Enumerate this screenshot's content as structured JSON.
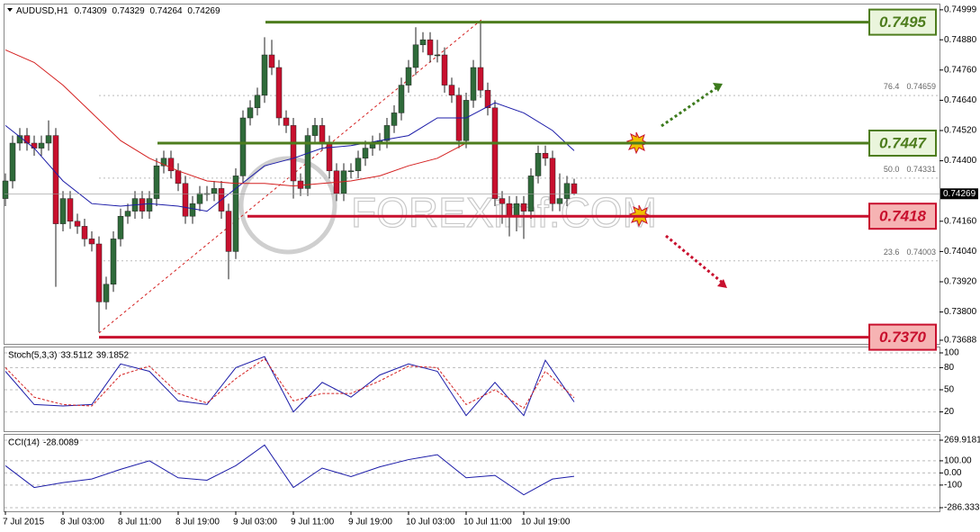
{
  "chart_data": [
    {
      "type": "candlestick",
      "symbol": "AUDUSD,H1",
      "header": [
        0.74309,
        0.74329,
        0.74264,
        0.74269
      ],
      "up_color": "#2f6b3a",
      "down_color": "#c8102e",
      "categories": [
        "7 Jul 2015",
        null,
        null,
        null,
        null,
        null,
        null,
        null,
        "8 Jul 03:00",
        null,
        null,
        null,
        null,
        null,
        null,
        null,
        "8 Jul 11:00",
        null,
        null,
        null,
        null,
        null,
        null,
        null,
        "8 Jul 19:00",
        null,
        null,
        null,
        null,
        null,
        null,
        null,
        "9 Jul 03:00",
        null,
        null,
        null,
        null,
        null,
        null,
        null,
        "9 Jul 11:00",
        null,
        null,
        null,
        null,
        null,
        null,
        null,
        "9 Jul 19:00",
        null,
        null,
        null,
        null,
        null,
        null,
        null,
        "10 Jul 03:00",
        null,
        null,
        null,
        null,
        null,
        null,
        null,
        "10 Jul 11:00",
        null,
        null,
        null,
        null,
        null,
        null,
        null,
        "10 Jul 19:00",
        null,
        null,
        null,
        null,
        null,
        null,
        null
      ],
      "open": [
        0.7425,
        0.7432,
        0.7447,
        0.745,
        0.7447,
        0.7445,
        0.7447,
        0.745,
        0.7415,
        0.7425,
        0.7416,
        0.7414,
        0.7409,
        0.7407,
        0.7384,
        0.7391,
        0.7409,
        0.7418,
        0.742,
        0.7425,
        0.742,
        0.7425,
        0.7438,
        0.7441,
        0.7436,
        0.7431,
        0.7418,
        0.7423,
        0.7427,
        0.7427,
        0.7429,
        0.742,
        0.7404,
        0.7434,
        0.7457,
        0.7461,
        0.7466,
        0.7482,
        0.7477,
        0.7457,
        0.7454,
        0.7432,
        0.7429,
        0.745,
        0.7454,
        0.7447,
        0.7436,
        0.7427,
        0.7436,
        0.7436,
        0.7441,
        0.7445,
        0.7447,
        0.7448,
        0.7454,
        0.7459,
        0.747,
        0.7477,
        0.7486,
        0.7488,
        0.7482,
        0.7482,
        0.747,
        0.7466,
        0.7448,
        0.7464,
        0.7477,
        0.7468,
        0.7461,
        0.7425,
        0.7423,
        0.7418,
        0.7423,
        0.742,
        0.7434,
        0.7443,
        0.7441,
        0.7423,
        0.7425,
        0.74309
      ],
      "high": [
        0.7435,
        0.745,
        0.7453,
        0.7453,
        0.745,
        0.745,
        0.7456,
        0.7453,
        0.7428,
        0.7428,
        0.7419,
        0.7417,
        0.7412,
        0.741,
        0.7394,
        0.7412,
        0.7421,
        0.7423,
        0.7428,
        0.7428,
        0.7428,
        0.7441,
        0.7444,
        0.7444,
        0.7439,
        0.7434,
        0.7426,
        0.743,
        0.743,
        0.7432,
        0.7432,
        0.7423,
        0.7437,
        0.746,
        0.7464,
        0.7469,
        0.7489,
        0.7488,
        0.748,
        0.746,
        0.7457,
        0.7435,
        0.7453,
        0.7457,
        0.7457,
        0.745,
        0.7439,
        0.7439,
        0.7439,
        0.7444,
        0.7448,
        0.745,
        0.7451,
        0.7457,
        0.7462,
        0.7473,
        0.748,
        0.7493,
        0.7491,
        0.7491,
        0.7488,
        0.7485,
        0.7473,
        0.7469,
        0.7467,
        0.748,
        0.7495,
        0.7471,
        0.7464,
        0.7428,
        0.7426,
        0.7426,
        0.7426,
        0.7437,
        0.7446,
        0.7446,
        0.7444,
        0.7435,
        0.7434,
        0.74329
      ],
      "low": [
        0.7422,
        0.7429,
        0.7444,
        0.7444,
        0.7442,
        0.7442,
        0.7444,
        0.739,
        0.7412,
        0.7413,
        0.7411,
        0.7406,
        0.7404,
        0.7372,
        0.7381,
        0.7388,
        0.7406,
        0.7415,
        0.7417,
        0.7417,
        0.7417,
        0.7422,
        0.7435,
        0.7433,
        0.7428,
        0.7415,
        0.7415,
        0.742,
        0.7424,
        0.7424,
        0.7417,
        0.7393,
        0.7401,
        0.7431,
        0.7454,
        0.7458,
        0.7463,
        0.7474,
        0.7454,
        0.7451,
        0.7425,
        0.7426,
        0.7426,
        0.7447,
        0.7444,
        0.7433,
        0.7424,
        0.7424,
        0.7433,
        0.7433,
        0.7438,
        0.7442,
        0.7444,
        0.7445,
        0.7451,
        0.7456,
        0.7467,
        0.7474,
        0.7483,
        0.7479,
        0.7479,
        0.7467,
        0.7463,
        0.7445,
        0.7445,
        0.7461,
        0.7465,
        0.7458,
        0.7422,
        0.7415,
        0.741,
        0.7412,
        0.7409,
        0.7417,
        0.7431,
        0.7438,
        0.742,
        0.742,
        0.7422,
        0.74264
      ],
      "close": [
        0.7432,
        0.7447,
        0.745,
        0.7447,
        0.7445,
        0.7447,
        0.745,
        0.7415,
        0.7425,
        0.7416,
        0.7414,
        0.7409,
        0.7407,
        0.7384,
        0.7391,
        0.7409,
        0.7418,
        0.742,
        0.7425,
        0.742,
        0.7425,
        0.7438,
        0.7441,
        0.7436,
        0.7431,
        0.7418,
        0.7423,
        0.7427,
        0.7427,
        0.7429,
        0.742,
        0.7404,
        0.7434,
        0.7457,
        0.7461,
        0.7466,
        0.7482,
        0.7477,
        0.7457,
        0.7454,
        0.7432,
        0.7429,
        0.745,
        0.7454,
        0.7447,
        0.7436,
        0.7427,
        0.7436,
        0.7436,
        0.7441,
        0.7445,
        0.7447,
        0.7448,
        0.7454,
        0.7459,
        0.747,
        0.7477,
        0.7486,
        0.7488,
        0.7482,
        0.7482,
        0.747,
        0.7466,
        0.7448,
        0.7464,
        0.7477,
        0.7468,
        0.7461,
        0.7425,
        0.7423,
        0.7418,
        0.7423,
        0.742,
        0.7434,
        0.7443,
        0.7441,
        0.7423,
        0.7425,
        0.7431,
        0.74269
      ],
      "series": [
        {
          "color": "#1c1ca8",
          "x": [
            0,
            4,
            8,
            12,
            16,
            20,
            24,
            28,
            32,
            36,
            40,
            44,
            48,
            52,
            56,
            60,
            64,
            68,
            72,
            76,
            79
          ],
          "values": [
            0.7454,
            0.7445,
            0.7432,
            0.7423,
            0.7422,
            0.7423,
            0.7422,
            0.742,
            0.7429,
            0.7438,
            0.7441,
            0.7445,
            0.7446,
            0.7448,
            0.745,
            0.7457,
            0.7457,
            0.7463,
            0.7459,
            0.7452,
            0.7444
          ]
        },
        {
          "color": "#d42020",
          "x": [
            0,
            4,
            8,
            12,
            16,
            20,
            24,
            28,
            32,
            36,
            40,
            44,
            48,
            52,
            56,
            60,
            64,
            68,
            72
          ],
          "values": [
            0.7484,
            0.7479,
            0.747,
            0.7459,
            0.7448,
            0.7441,
            0.7436,
            0.7432,
            0.7431,
            0.7431,
            0.743,
            0.7431,
            0.7432,
            0.7434,
            0.7438,
            0.7441,
            0.7447,
            0.7447,
            0.7447
          ]
        }
      ],
      "levels": [
        {
          "value": 0.7495,
          "color": "#4e7d1e",
          "fill": "#eaf5dc"
        },
        {
          "value": 0.7447,
          "color": "#4e7d1e",
          "fill": "#eaf5dc"
        },
        {
          "value": 0.7418,
          "color": "#c8102e",
          "fill": "#f6b3b3"
        },
        {
          "value": {
            "value": 0.737,
            "label": "0.7370"
          },
          "color": "#c8102e",
          "fill": "#f6b3b3"
        }
      ],
      "fib_levels": [
        {
          "ratio": 76.4,
          "price": 0.74659
        },
        {
          "ratio": {
            "value": 50,
            "label": "50.0"
          },
          "price": 0.74331
        },
        {
          "ratio": 23.6,
          "price": 0.74003
        }
      ],
      "watermark": "FOREXimf.COM",
      "ylim": [
        0.7367,
        0.7502
      ],
      "yticks": [
        0.74999,
        {
          "value": 0.7488,
          "label": "0.74880"
        },
        {
          "value": 0.7476,
          "label": "0.74760"
        },
        {
          "value": 0.7464,
          "label": "0.74640"
        },
        {
          "value": 0.7452,
          "label": "0.74520"
        },
        {
          "value": 0.744,
          "label": "0.74400"
        },
        {
          "value": 0.7416,
          "label": "0.74160"
        },
        {
          "value": 0.7404,
          "label": "0.74040"
        },
        {
          "value": 0.7392,
          "label": "0.73920"
        },
        {
          "value": 0.738,
          "label": "0.73800"
        },
        0.73688
      ]
    },
    {
      "type": "line",
      "title": "Stoch(5,3,3)",
      "readings": [
        33.5112,
        39.1852
      ],
      "grid": true,
      "ylim": [
        0,
        100
      ],
      "yticks": [
        20,
        50,
        80,
        100
      ],
      "series": [
        {
          "color": "#1c1ca8",
          "x": [
            0,
            4,
            8,
            12,
            16,
            20,
            24,
            28,
            32,
            36,
            40,
            44,
            48,
            52,
            56,
            60,
            64,
            68,
            72,
            75,
            79
          ],
          "values": [
            75,
            30,
            28,
            30,
            85,
            75,
            35,
            30,
            80,
            95,
            20,
            60,
            40,
            70,
            85,
            75,
            15,
            60,
            15,
            90,
            33.5112
          ]
        },
        {
          "color": "#d42020",
          "dashed": true,
          "x": [
            0,
            4,
            8,
            12,
            16,
            20,
            24,
            28,
            32,
            36,
            40,
            44,
            48,
            52,
            56,
            60,
            64,
            68,
            72,
            75,
            79
          ],
          "values": [
            80,
            40,
            30,
            28,
            70,
            82,
            45,
            32,
            65,
            92,
            35,
            45,
            45,
            62,
            82,
            80,
            30,
            50,
            25,
            75,
            39.1852
          ]
        }
      ]
    },
    {
      "type": "line",
      "title": "CCI(14)",
      "readings": [
        -28.0089
      ],
      "grid": true,
      "ylim": [
        -286.3339,
        269.9181
      ],
      "yticks": [
        269.9181,
        {
          "value": 100,
          "label": "100.00"
        },
        {
          "value": 0,
          "label": "0.00"
        },
        -100,
        -286.3339
      ],
      "series": [
        {
          "color": "#1c1ca8",
          "x": [
            0,
            4,
            8,
            12,
            16,
            20,
            24,
            28,
            32,
            36,
            40,
            44,
            48,
            52,
            56,
            60,
            64,
            68,
            72,
            76,
            79
          ],
          "values": [
            60,
            -120,
            -80,
            -50,
            30,
            100,
            -40,
            -60,
            60,
            230,
            -120,
            40,
            -30,
            50,
            110,
            150,
            -40,
            -20,
            -180,
            -50,
            -28.0089
          ]
        }
      ]
    }
  ]
}
